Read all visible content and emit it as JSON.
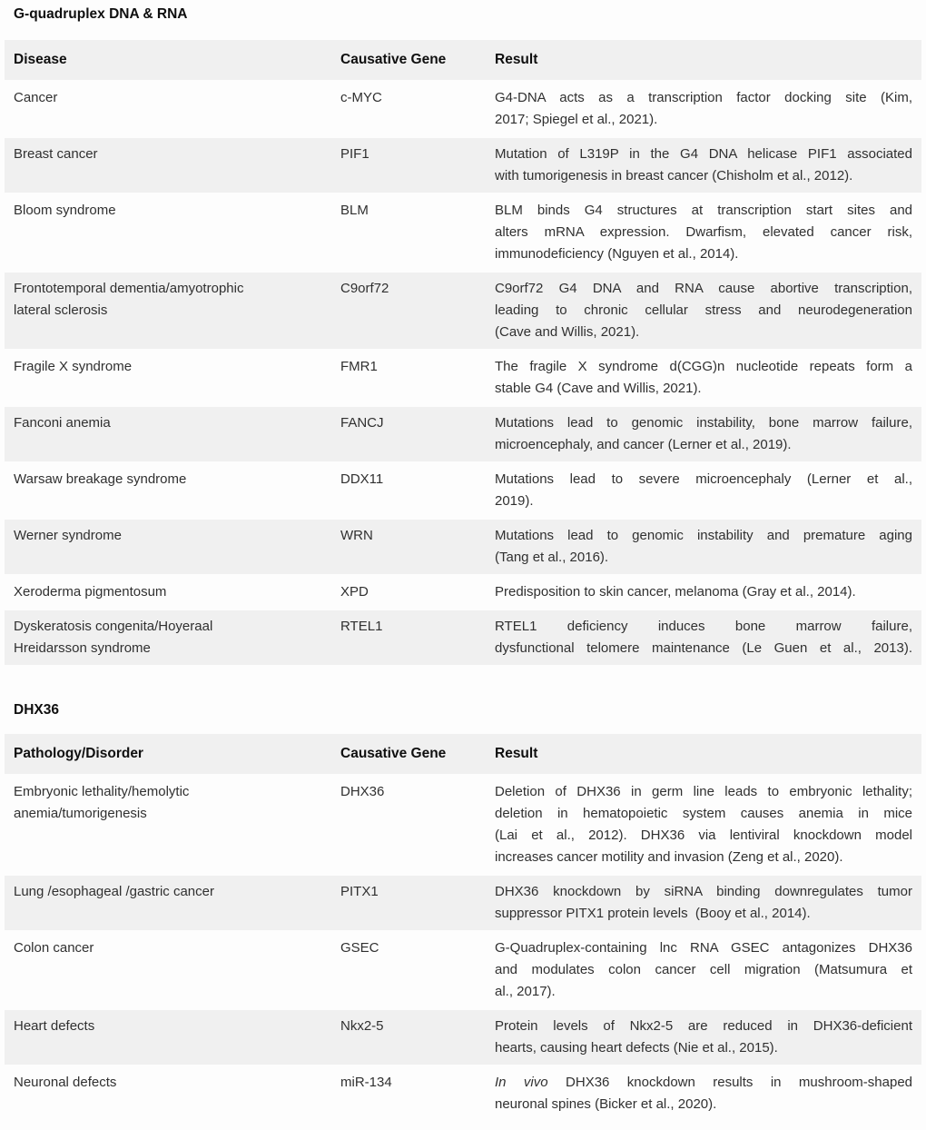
{
  "theme": {
    "page_bg": "#fdfdfd",
    "stripe": "#f0f0f0",
    "text": "#303030",
    "heading": "#0f0f0f"
  },
  "sections": [
    {
      "title": "G-quadruplex DNA & RNA",
      "headers": [
        "Disease",
        "Causative Gene",
        "Result"
      ],
      "rows": [
        {
          "name": [
            "Cancer"
          ],
          "gene": "c-MYC",
          "result": [
            "G4-DNA acts as a transcription factor docking site (Kim,",
            "2017; Spiegel et al., 2021)."
          ]
        },
        {
          "name": [
            "Breast cancer"
          ],
          "gene": "PIF1",
          "result": [
            "Mutation of L319P in the G4 DNA helicase PIF1 associated",
            "with tumorigenesis in breast cancer (Chisholm et al., 2012)."
          ]
        },
        {
          "name": [
            "Bloom syndrome"
          ],
          "gene": "BLM",
          "result": [
            "BLM binds G4 structures at transcription start sites and",
            "alters mRNA expression. Dwarfism, elevated cancer risk,",
            "immunodeficiency (Nguyen et al., 2014)."
          ]
        },
        {
          "name": [
            "Frontotemporal dementia/amyotrophic",
            "lateral sclerosis"
          ],
          "gene": "C9orf72",
          "result": [
            "C9orf72 G4 DNA and RNA cause abortive transcription,",
            "leading to chronic cellular stress and neurodegeneration",
            "(Cave and Willis, 2021)."
          ]
        },
        {
          "name": [
            "Fragile X syndrome"
          ],
          "gene": "FMR1",
          "result": [
            "The fragile X syndrome d(CGG)n nucleotide repeats form a",
            "stable G4 (Cave and Willis, 2021)."
          ]
        },
        {
          "name": [
            "Fanconi anemia"
          ],
          "gene": "FANCJ",
          "result": [
            "Mutations lead to genomic instability, bone marrow failure,",
            "microencephaly, and cancer (Lerner et al., 2019)."
          ]
        },
        {
          "name": [
            "Warsaw breakage syndrome"
          ],
          "gene": "DDX11",
          "result": [
            "Mutations lead to severe microencephaly (Lerner et al.,",
            "2019)."
          ]
        },
        {
          "name": [
            "Werner syndrome"
          ],
          "gene": "WRN",
          "result": [
            "Mutations lead to genomic instability and premature aging",
            "(Tang et al., 2016)."
          ]
        },
        {
          "name": [
            "Xeroderma pigmentosum"
          ],
          "gene": "XPD",
          "result": [
            "Predisposition to skin cancer, melanoma (Gray et al., 2014)."
          ]
        },
        {
          "name": [
            "Dyskeratosis congenita/Hoyeraal",
            "Hreidarsson syndrome"
          ],
          "gene": "RTEL1",
          "justify_all": true,
          "result": [
            "RTEL1 deficiency induces bone marrow failure,",
            "dysfunctional telomere maintenance (Le Guen et al., 2013)."
          ]
        }
      ]
    },
    {
      "title": "DHX36",
      "headers": [
        "Pathology/Disorder",
        "Causative Gene",
        "Result"
      ],
      "rows": [
        {
          "name": [
            "Embryonic lethality/hemolytic",
            "anemia/tumorigenesis"
          ],
          "gene": "DHX36",
          "result": [
            "Deletion of DHX36 in germ line leads to embryonic lethality;",
            "deletion in hematopoietic system causes anemia in mice",
            "(Lai et al., 2012). DHX36 via lentiviral knockdown model",
            "increases cancer motility and invasion (Zeng et al., 2020)."
          ]
        },
        {
          "name": [
            "Lung /esophageal /gastric cancer"
          ],
          "gene": "PITX1",
          "result": [
            "DHX36 knockdown by siRNA binding downregulates tumor",
            "suppressor PITX1 protein levels  (Booy et al., 2014)."
          ]
        },
        {
          "name": [
            "Colon cancer"
          ],
          "gene": "GSEC",
          "result": [
            "G-Quadruplex-containing lnc RNA GSEC antagonizes DHX36",
            "and modulates colon cancer cell migration (Matsumura et",
            "al., 2017)."
          ]
        },
        {
          "name": [
            "Heart defects"
          ],
          "gene": "Nkx2-5",
          "result": [
            "Protein levels of Nkx2-5 are reduced in DHX36-deficient",
            "hearts, causing heart defects (Nie et al., 2015)."
          ]
        },
        {
          "name": [
            "Neuronal defects"
          ],
          "gene": "miR-134",
          "italic_prefix": "In vivo",
          "result": [
            "In vivo DHX36 knockdown results in mushroom-shaped",
            "neuronal spines (Bicker et al., 2020)."
          ]
        }
      ]
    }
  ]
}
